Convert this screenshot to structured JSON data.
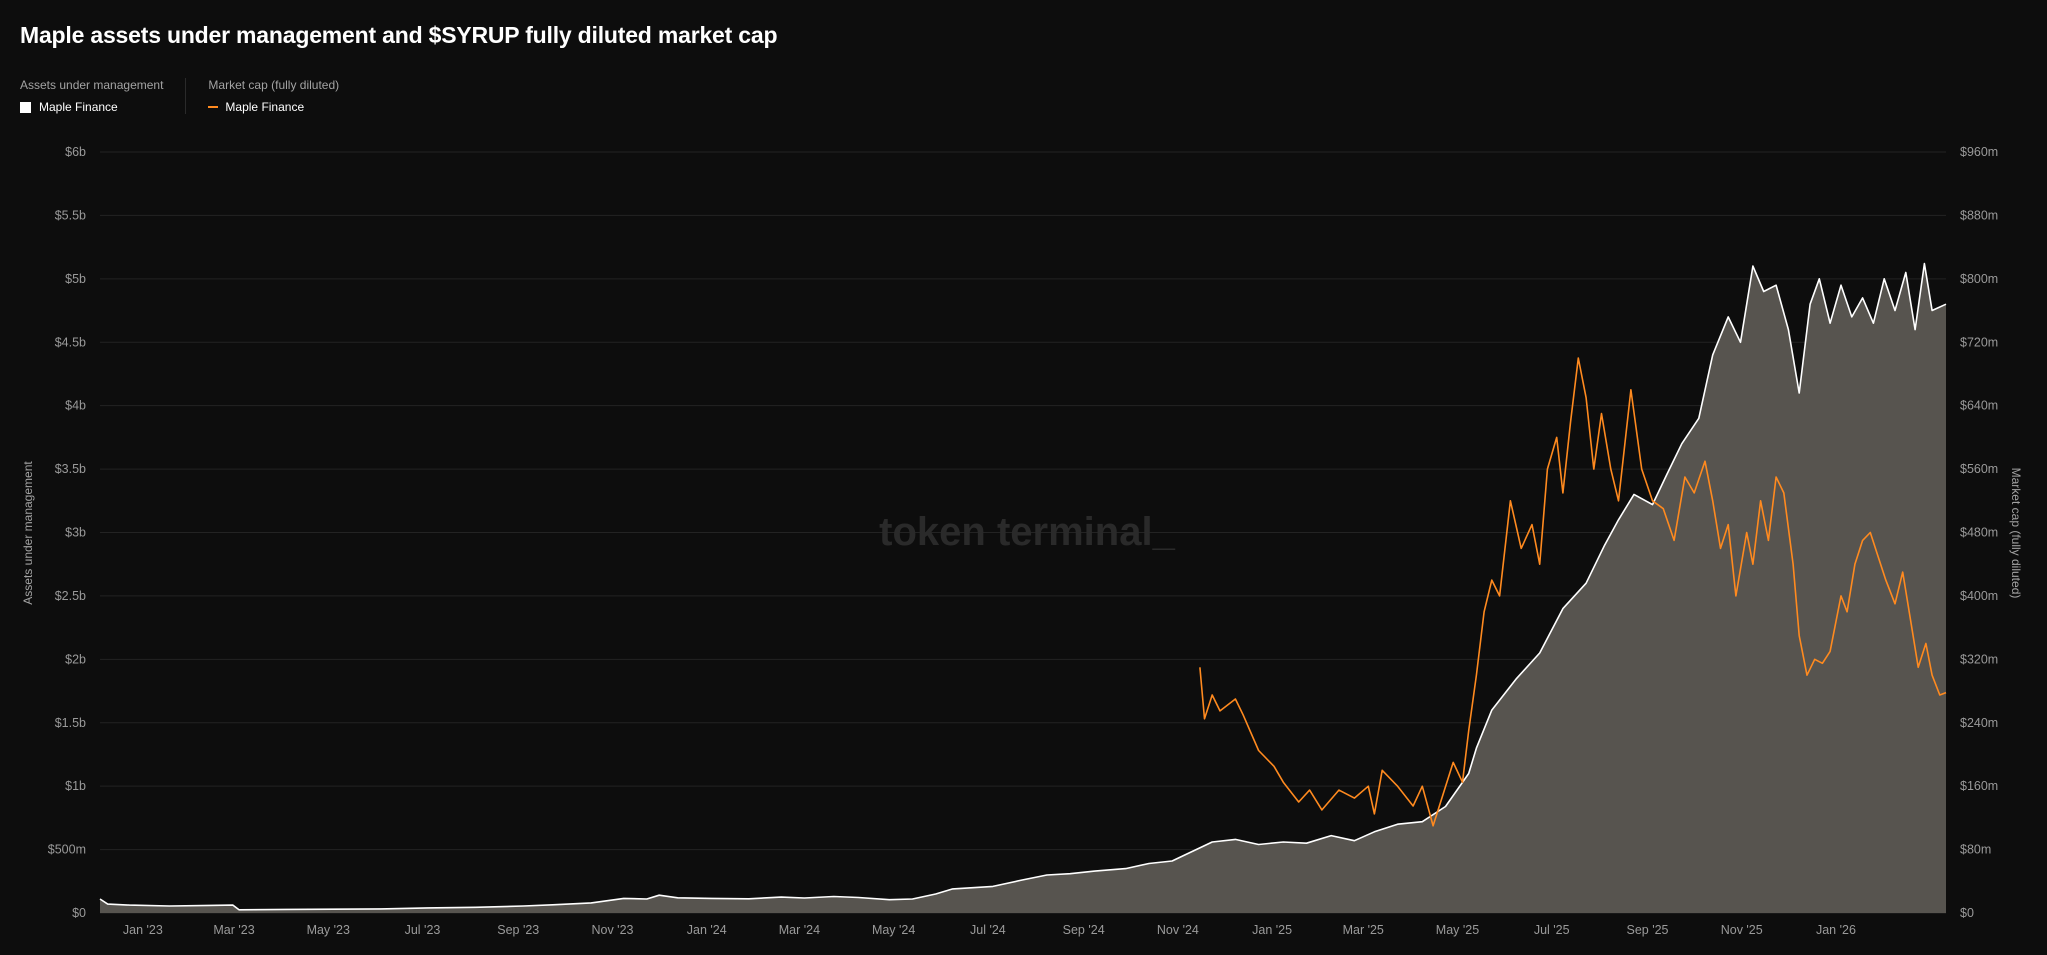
{
  "chart_data": {
    "type": "area",
    "title": "Maple assets under management and $SYRUP fully diluted market cap",
    "legend": {
      "placement": "top-left",
      "groups": [
        {
          "heading": "Assets under management",
          "item": "Maple Finance",
          "marker": "square",
          "color": "#ffffff"
        },
        {
          "heading": "Market cap (fully diluted)",
          "item": "Maple Finance",
          "marker": "line",
          "color": "#ff8a1f"
        }
      ]
    },
    "watermark": "token terminal_",
    "x_ticks": [
      "Jan '23",
      "Mar '23",
      "May '23",
      "Jul '23",
      "Sep '23",
      "Nov '23",
      "Jan '24",
      "Mar '24",
      "May '24",
      "Jul '24",
      "Sep '24",
      "Nov '24",
      "Jan '25",
      "Mar '25",
      "May '25",
      "Jul '25",
      "Sep '25",
      "Nov '25",
      "Jan '26"
    ],
    "x_range": [
      "2022-12-01",
      "2026-03-10"
    ],
    "y_left": {
      "label": "Assets under management",
      "ticks": [
        "$0",
        "$500m",
        "$1b",
        "$1.5b",
        "$2b",
        "$2.5b",
        "$3b",
        "$3.5b",
        "$4b",
        "$4.5b",
        "$5b",
        "$5.5b",
        "$6b"
      ],
      "range": [
        0,
        6000
      ],
      "unit": "$m"
    },
    "y_right": {
      "label": "Market cap (fully diluted)",
      "ticks": [
        "$0",
        "$80m",
        "$160m",
        "$240m",
        "$320m",
        "$400m",
        "$480m",
        "$560m",
        "$640m",
        "$720m",
        "$800m",
        "$880m",
        "$960m"
      ],
      "range": [
        0,
        960
      ],
      "unit": "$m"
    },
    "grid": true,
    "series": [
      {
        "name": "Maple Finance",
        "axis": "left",
        "style": "area",
        "color": "#ffffff",
        "fill": "#57544f",
        "points": [
          [
            "2022-12-01",
            110
          ],
          [
            "2022-12-06",
            70
          ],
          [
            "2022-12-20",
            62
          ],
          [
            "2023-01-15",
            55
          ],
          [
            "2023-02-10",
            60
          ],
          [
            "2023-02-25",
            62
          ],
          [
            "2023-03-01",
            25
          ],
          [
            "2023-04-01",
            28
          ],
          [
            "2023-05-01",
            30
          ],
          [
            "2023-06-01",
            32
          ],
          [
            "2023-07-01",
            40
          ],
          [
            "2023-08-01",
            45
          ],
          [
            "2023-09-01",
            55
          ],
          [
            "2023-09-20",
            65
          ],
          [
            "2023-10-15",
            80
          ],
          [
            "2023-11-05",
            115
          ],
          [
            "2023-11-20",
            110
          ],
          [
            "2023-11-28",
            140
          ],
          [
            "2023-12-10",
            120
          ],
          [
            "2024-01-01",
            115
          ],
          [
            "2024-01-25",
            112
          ],
          [
            "2024-02-15",
            125
          ],
          [
            "2024-03-01",
            118
          ],
          [
            "2024-03-20",
            130
          ],
          [
            "2024-04-05",
            122
          ],
          [
            "2024-04-25",
            105
          ],
          [
            "2024-05-10",
            110
          ],
          [
            "2024-05-25",
            150
          ],
          [
            "2024-06-05",
            190
          ],
          [
            "2024-07-01",
            210
          ],
          [
            "2024-07-20",
            260
          ],
          [
            "2024-08-05",
            300
          ],
          [
            "2024-08-20",
            310
          ],
          [
            "2024-09-05",
            330
          ],
          [
            "2024-09-25",
            350
          ],
          [
            "2024-10-10",
            390
          ],
          [
            "2024-10-25",
            410
          ],
          [
            "2024-11-01",
            450
          ],
          [
            "2024-11-20",
            560
          ],
          [
            "2024-12-05",
            580
          ],
          [
            "2024-12-20",
            540
          ],
          [
            "2025-01-05",
            560
          ],
          [
            "2025-01-20",
            550
          ],
          [
            "2025-02-05",
            610
          ],
          [
            "2025-02-20",
            570
          ],
          [
            "2025-03-05",
            640
          ],
          [
            "2025-03-20",
            700
          ],
          [
            "2025-04-05",
            720
          ],
          [
            "2025-04-20",
            840
          ],
          [
            "2025-05-05",
            1100
          ],
          [
            "2025-05-10",
            1300
          ],
          [
            "2025-05-20",
            1600
          ],
          [
            "2025-06-05",
            1850
          ],
          [
            "2025-06-20",
            2050
          ],
          [
            "2025-07-05",
            2400
          ],
          [
            "2025-07-20",
            2600
          ],
          [
            "2025-08-01",
            2900
          ],
          [
            "2025-08-10",
            3100
          ],
          [
            "2025-08-20",
            3300
          ],
          [
            "2025-09-01",
            3220
          ],
          [
            "2025-09-10",
            3450
          ],
          [
            "2025-09-20",
            3700
          ],
          [
            "2025-10-01",
            3900
          ],
          [
            "2025-10-10",
            4400
          ],
          [
            "2025-10-20",
            4700
          ],
          [
            "2025-10-28",
            4500
          ],
          [
            "2025-11-05",
            5100
          ],
          [
            "2025-11-12",
            4900
          ],
          [
            "2025-11-20",
            4950
          ],
          [
            "2025-11-28",
            4600
          ],
          [
            "2025-12-05",
            4100
          ],
          [
            "2025-12-12",
            4800
          ],
          [
            "2025-12-18",
            5000
          ],
          [
            "2025-12-25",
            4650
          ],
          [
            "2026-01-01",
            4950
          ],
          [
            "2026-01-08",
            4700
          ],
          [
            "2026-01-15",
            4850
          ],
          [
            "2026-01-22",
            4650
          ],
          [
            "2026-01-29",
            5000
          ],
          [
            "2026-02-05",
            4750
          ],
          [
            "2026-02-12",
            5050
          ],
          [
            "2026-02-18",
            4600
          ],
          [
            "2026-02-24",
            5120
          ],
          [
            "2026-03-01",
            4750
          ],
          [
            "2026-03-10",
            4800
          ]
        ]
      },
      {
        "name": "Maple Finance",
        "axis": "right",
        "style": "line",
        "color": "#ff8a1f",
        "points": [
          [
            "2024-11-12",
            310
          ],
          [
            "2024-11-15",
            245
          ],
          [
            "2024-11-20",
            275
          ],
          [
            "2024-11-25",
            255
          ],
          [
            "2024-12-05",
            270
          ],
          [
            "2024-12-10",
            250
          ],
          [
            "2024-12-20",
            205
          ],
          [
            "2024-12-30",
            185
          ],
          [
            "2025-01-05",
            165
          ],
          [
            "2025-01-15",
            140
          ],
          [
            "2025-01-22",
            155
          ],
          [
            "2025-01-30",
            130
          ],
          [
            "2025-02-10",
            155
          ],
          [
            "2025-02-20",
            145
          ],
          [
            "2025-03-01",
            160
          ],
          [
            "2025-03-05",
            125
          ],
          [
            "2025-03-10",
            180
          ],
          [
            "2025-03-20",
            160
          ],
          [
            "2025-03-30",
            135
          ],
          [
            "2025-04-05",
            160
          ],
          [
            "2025-04-12",
            110
          ],
          [
            "2025-04-25",
            190
          ],
          [
            "2025-05-01",
            165
          ],
          [
            "2025-05-05",
            230
          ],
          [
            "2025-05-10",
            300
          ],
          [
            "2025-05-15",
            380
          ],
          [
            "2025-05-20",
            420
          ],
          [
            "2025-05-25",
            400
          ],
          [
            "2025-06-01",
            520
          ],
          [
            "2025-06-08",
            460
          ],
          [
            "2025-06-15",
            490
          ],
          [
            "2025-06-20",
            440
          ],
          [
            "2025-06-25",
            560
          ],
          [
            "2025-07-01",
            600
          ],
          [
            "2025-07-05",
            530
          ],
          [
            "2025-07-10",
            620
          ],
          [
            "2025-07-15",
            700
          ],
          [
            "2025-07-20",
            650
          ],
          [
            "2025-07-25",
            560
          ],
          [
            "2025-07-30",
            630
          ],
          [
            "2025-08-05",
            560
          ],
          [
            "2025-08-10",
            520
          ],
          [
            "2025-08-18",
            660
          ],
          [
            "2025-08-25",
            560
          ],
          [
            "2025-09-01",
            520
          ],
          [
            "2025-09-08",
            510
          ],
          [
            "2025-09-15",
            470
          ],
          [
            "2025-09-22",
            550
          ],
          [
            "2025-09-28",
            530
          ],
          [
            "2025-10-05",
            570
          ],
          [
            "2025-10-10",
            520
          ],
          [
            "2025-10-15",
            460
          ],
          [
            "2025-10-20",
            490
          ],
          [
            "2025-10-25",
            400
          ],
          [
            "2025-11-01",
            480
          ],
          [
            "2025-11-05",
            440
          ],
          [
            "2025-11-10",
            520
          ],
          [
            "2025-11-15",
            470
          ],
          [
            "2025-11-20",
            550
          ],
          [
            "2025-11-25",
            530
          ],
          [
            "2025-12-01",
            440
          ],
          [
            "2025-12-05",
            350
          ],
          [
            "2025-12-10",
            300
          ],
          [
            "2025-12-15",
            320
          ],
          [
            "2025-12-20",
            315
          ],
          [
            "2025-12-25",
            330
          ],
          [
            "2026-01-01",
            400
          ],
          [
            "2026-01-05",
            380
          ],
          [
            "2026-01-10",
            440
          ],
          [
            "2026-01-15",
            470
          ],
          [
            "2026-01-20",
            480
          ],
          [
            "2026-01-25",
            450
          ],
          [
            "2026-01-30",
            420
          ],
          [
            "2026-02-05",
            390
          ],
          [
            "2026-02-10",
            430
          ],
          [
            "2026-02-15",
            370
          ],
          [
            "2026-02-20",
            310
          ],
          [
            "2026-02-25",
            340
          ],
          [
            "2026-03-01",
            300
          ],
          [
            "2026-03-06",
            275
          ],
          [
            "2026-03-10",
            278
          ]
        ]
      }
    ]
  }
}
